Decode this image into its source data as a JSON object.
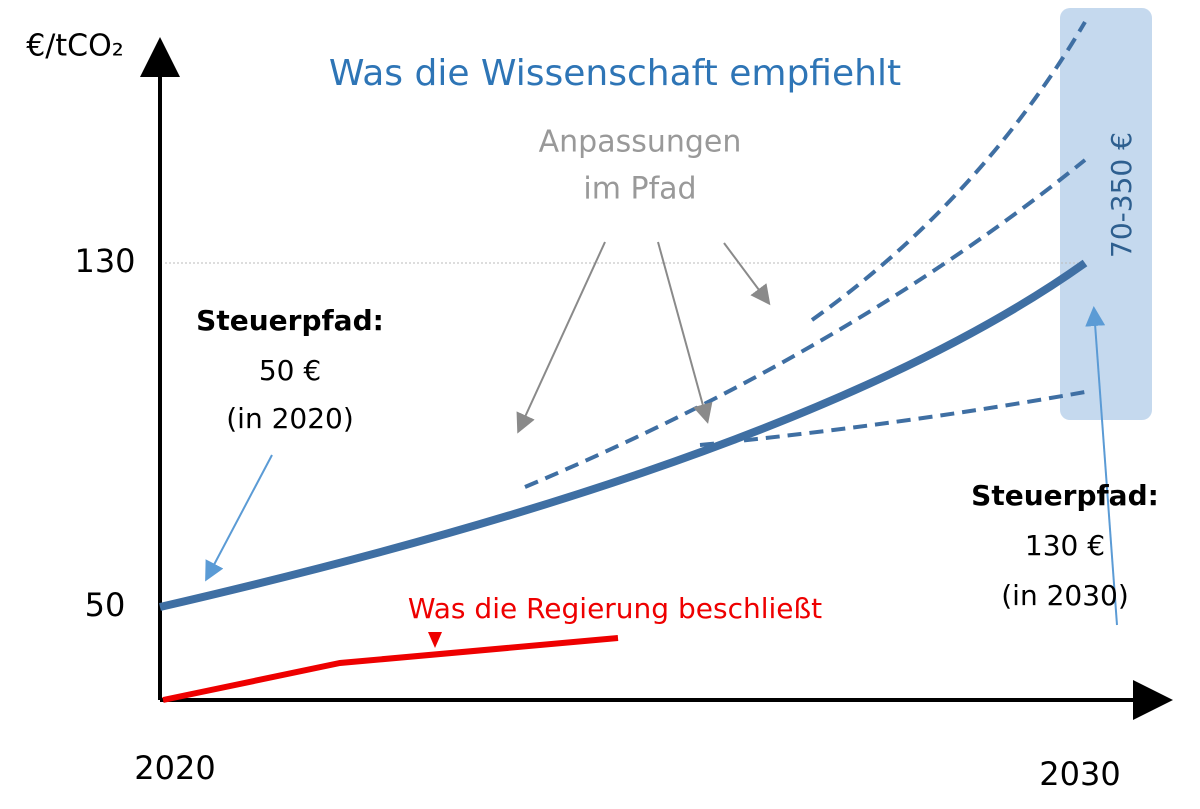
{
  "title": "Was die Wissenschaft empfiehlt",
  "y_axis_label": "€/tCO₂",
  "y_labels": [
    "130",
    "50"
  ],
  "x_labels": [
    "2020",
    "2030"
  ],
  "adjustments": [
    "Anpassungen",
    "im Pfad"
  ],
  "range_label": "70-350 €",
  "left_note": [
    "Steuerpfad:",
    "50 €",
    "(in 2020)"
  ],
  "right_note": [
    "Steuerpfad:",
    "130 €",
    "(in 2030)"
  ],
  "government_label": "Was die Regierung beschließt"
}
